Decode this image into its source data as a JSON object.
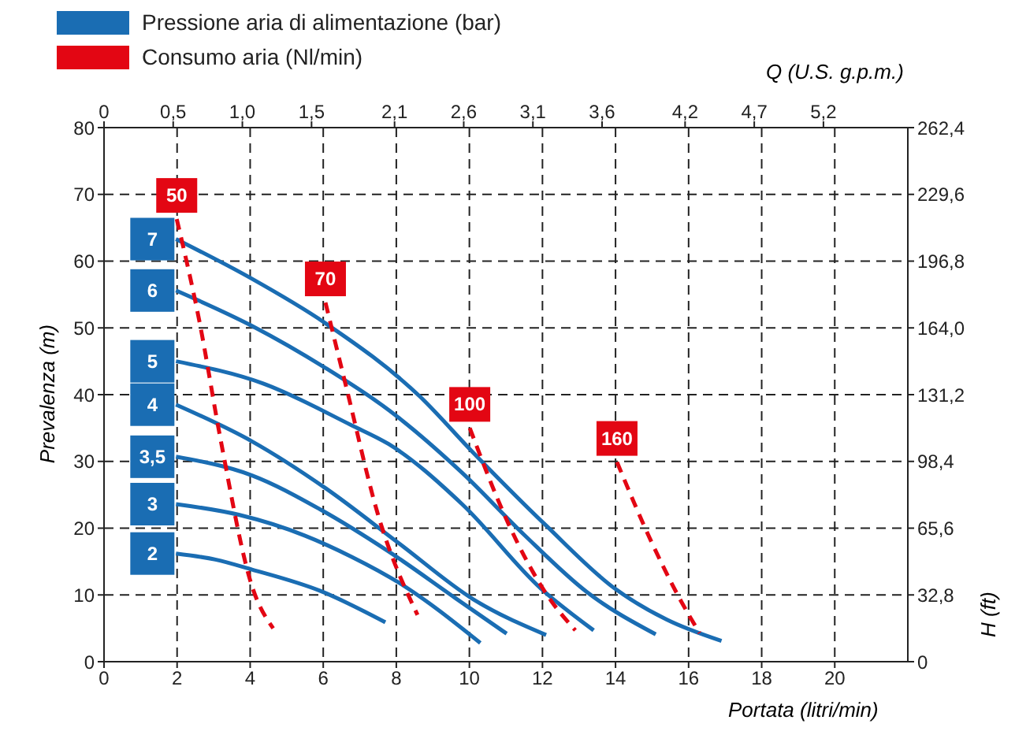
{
  "chart_data": {
    "type": "line",
    "annotations": [
      "Pressione aria di alimentazione (bar)",
      "Consumo aria (Nl/min)"
    ],
    "xlabel": "Portata (litri/min)",
    "ylabel": "Prevalenza (m)",
    "x2label": "Q (U.S. g.p.m.)",
    "y2label": "H (ft)",
    "xlim": [
      0,
      22
    ],
    "xticks": [
      0,
      2,
      4,
      6,
      8,
      10,
      12,
      14,
      16,
      18,
      20
    ],
    "ylim": [
      0,
      80
    ],
    "yticks": [
      0,
      10,
      20,
      30,
      40,
      50,
      60,
      70,
      80
    ],
    "x2lim": [
      0,
      5.81
    ],
    "x2ticks": [
      0,
      {
        "value": 0.5,
        "label": "0,5"
      },
      {
        "value": 1.0,
        "label": "1,0"
      },
      {
        "value": 1.5,
        "label": "1,5"
      },
      {
        "value": 2.1,
        "label": "2,1"
      },
      {
        "value": 2.6,
        "label": "2,6"
      },
      {
        "value": 3.1,
        "label": "3,1"
      },
      {
        "value": 3.6,
        "label": "3,6"
      },
      {
        "value": 4.2,
        "label": "4,2"
      },
      {
        "value": 4.7,
        "label": "4,7"
      },
      {
        "value": 5.2,
        "label": "5,2"
      }
    ],
    "legend": "left",
    "y2lim": [
      0,
      262.4
    ],
    "y2ticks": [
      0,
      {
        "value": 32.8,
        "label": "32,8"
      },
      {
        "value": 65.6,
        "label": "65,6"
      },
      {
        "value": 98.4,
        "label": "98,4"
      },
      {
        "value": 131.2,
        "label": "131,2"
      },
      {
        "value": 164,
        "label": "164,0"
      },
      {
        "value": 196.8,
        "label": "196,8"
      },
      {
        "value": 229.6,
        "label": "229,6"
      },
      {
        "value": 262.4,
        "label": "262,4"
      }
    ],
    "grid": true,
    "series": [
      {
        "name": "7",
        "color": "#1a6db3",
        "x": [
          1.97,
          4,
          6.06,
          8.65,
          10.09,
          12.1,
          13.97,
          15.4,
          16.9
        ],
        "values": [
          63.3,
          57.5,
          50.7,
          39.7,
          31.4,
          20.4,
          11,
          6.3,
          3.1
        ]
      },
      {
        "name": "6",
        "color": "#1a6db3",
        "x": [
          1.97,
          4.05,
          6.06,
          7.79,
          9.8,
          11.5,
          13.2,
          15.1
        ],
        "values": [
          55.6,
          50.3,
          44,
          37.7,
          28.3,
          19,
          10.5,
          4.1
        ]
      },
      {
        "name": "5",
        "color": "#1a6db3",
        "x": [
          1.97,
          4.34,
          6.78,
          7.79,
          9.8,
          11.95,
          13.4
        ],
        "values": [
          45,
          41.7,
          35.4,
          32.6,
          23.6,
          11,
          4.7
        ]
      },
      {
        "name": "4",
        "color": "#1a6db3",
        "x": [
          1.97,
          4.05,
          6.06,
          8.08,
          10.09,
          12.1
        ],
        "values": [
          38.5,
          33,
          26,
          17.7,
          9.4,
          4
        ]
      },
      {
        "name": "3,5",
        "color": "#1a6db3",
        "x": [
          1.97,
          4.05,
          5.92,
          7.79,
          9.65,
          11.02
        ],
        "values": [
          30.7,
          27.9,
          22.8,
          16.5,
          9.4,
          4.2
        ]
      },
      {
        "name": "3",
        "color": "#1a6db3",
        "x": [
          1.97,
          3.69,
          5.49,
          6.78,
          8.08,
          10.3
        ],
        "values": [
          23.6,
          22,
          18.9,
          15.7,
          11.8,
          2.8
        ]
      },
      {
        "name": "2",
        "color": "#1a6db3",
        "x": [
          1.97,
          3.05,
          4.05,
          5.92,
          7.7
        ],
        "values": [
          16.2,
          15.3,
          13.8,
          10.6,
          5.9
        ]
      },
      {
        "name": "50",
        "color": "#e30613",
        "line_style": "dashed",
        "x": [
          1.99,
          2.61,
          3.19,
          4.05,
          4.63
        ],
        "values": [
          66.3,
          51,
          33.3,
          11.3,
          5
        ]
      },
      {
        "name": "70",
        "color": "#e30613",
        "line_style": "dashed",
        "x": [
          6.06,
          6.64,
          7.5,
          8.58
        ],
        "values": [
          53.8,
          40.9,
          22,
          7
        ]
      },
      {
        "name": "100",
        "color": "#e30613",
        "line_style": "dashed",
        "x": [
          10.01,
          11.09,
          12.1,
          12.9
        ],
        "values": [
          35,
          20.4,
          10.2,
          4.7
        ]
      },
      {
        "name": "160",
        "color": "#e30613",
        "line_style": "dashed",
        "x": [
          14.04,
          14.97,
          15.76,
          16.3
        ],
        "values": [
          29.9,
          18.1,
          9.4,
          4.3
        ]
      }
    ]
  }
}
